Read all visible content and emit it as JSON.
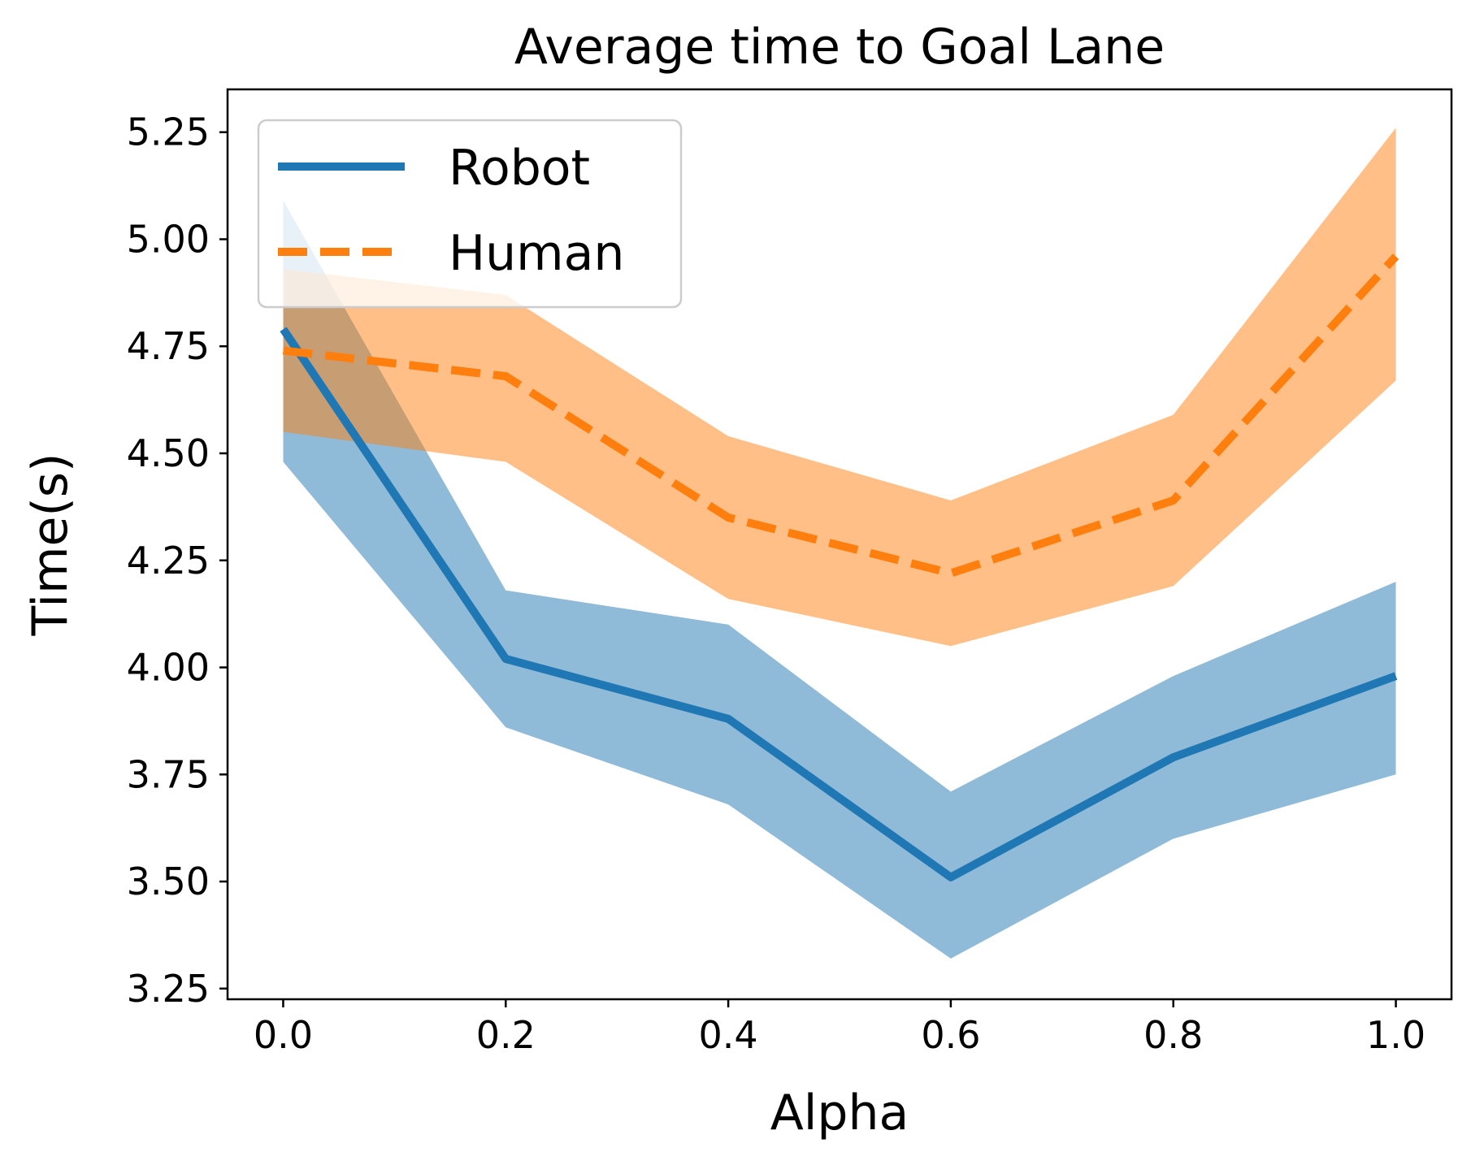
{
  "chart_data": {
    "type": "line",
    "title": "Average time to Goal Lane",
    "xlabel": "Alpha",
    "ylabel": "Time(s)",
    "xlim": [
      -0.05,
      1.05
    ],
    "ylim": [
      3.225,
      5.35
    ],
    "grid": false,
    "legend_position": "top-left",
    "x": [
      0.0,
      0.2,
      0.4,
      0.6,
      0.8,
      1.0
    ],
    "x_ticks": [
      0.0,
      0.2,
      0.4,
      0.6,
      0.8,
      1.0
    ],
    "x_tick_labels": [
      "0.0",
      "0.2",
      "0.4",
      "0.6",
      "0.8",
      "1.0"
    ],
    "y_ticks": [
      3.25,
      3.5,
      3.75,
      4.0,
      4.25,
      4.5,
      4.75,
      5.0,
      5.25
    ],
    "y_tick_labels": [
      "3.25",
      "3.50",
      "3.75",
      "4.00",
      "4.25",
      "4.50",
      "4.75",
      "5.00",
      "5.25"
    ],
    "series": [
      {
        "name": "Robot",
        "style": "solid",
        "color": "#1f77b4",
        "band_color": "#1f77b4",
        "values": [
          4.79,
          4.02,
          3.88,
          3.51,
          3.79,
          3.98
        ],
        "lower": [
          4.48,
          3.86,
          3.68,
          3.32,
          3.6,
          3.75
        ],
        "upper": [
          5.09,
          4.18,
          4.1,
          3.71,
          3.98,
          4.2
        ]
      },
      {
        "name": "Human",
        "style": "dashed",
        "color": "#ff7f0e",
        "band_color": "#ff7f0e",
        "values": [
          4.74,
          4.68,
          4.35,
          4.22,
          4.39,
          4.96
        ],
        "lower": [
          4.55,
          4.48,
          4.16,
          4.05,
          4.19,
          4.67
        ],
        "upper": [
          4.93,
          4.87,
          4.54,
          4.39,
          4.59,
          5.26
        ]
      }
    ]
  }
}
